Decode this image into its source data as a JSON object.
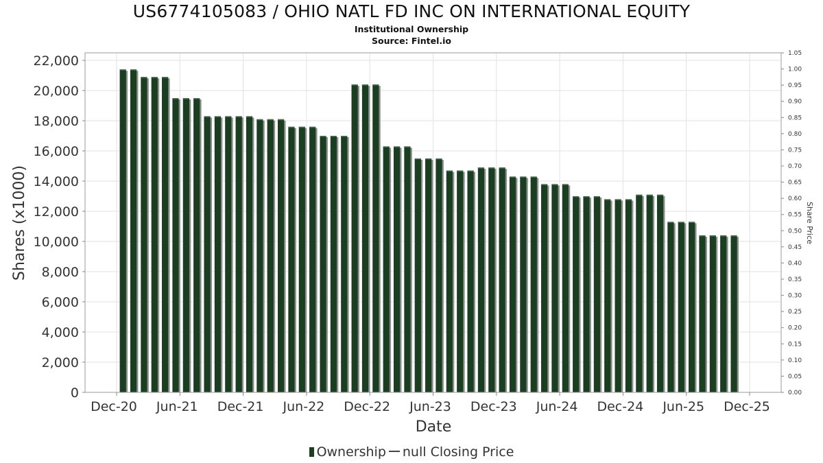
{
  "chart_data": {
    "type": "bar",
    "title": "US6774105083 / OHIO NATL FD INC ON INTERNATIONAL EQUITY",
    "subtitle_1": "Institutional Ownership",
    "subtitle_2": "Source: Fintel.io",
    "xlabel": "Date",
    "ylabel": "Shares (x1000)",
    "y2label": "Share Price",
    "ylim": [
      0,
      22500
    ],
    "y2lim": [
      0,
      1.05
    ],
    "yticks": [
      "0",
      "2,000",
      "4,000",
      "6,000",
      "8,000",
      "10,000",
      "12,000",
      "14,000",
      "16,000",
      "18,000",
      "20,000",
      "22,000"
    ],
    "y2ticks": [
      "0.00",
      "0.05",
      "0.10",
      "0.15",
      "0.20",
      "0.25",
      "0.30",
      "0.35",
      "0.40",
      "0.45",
      "0.50",
      "0.55",
      "0.60",
      "0.65",
      "0.70",
      "0.75",
      "0.80",
      "0.85",
      "0.90",
      "0.95",
      "1.00",
      "1.05"
    ],
    "xticks": [
      "Dec-20",
      "Jun-21",
      "Dec-21",
      "Jun-22",
      "Dec-22",
      "Jun-23",
      "Dec-23",
      "Jun-24",
      "Dec-24",
      "Jun-25",
      "Dec-25"
    ],
    "series": [
      {
        "name": "Ownership",
        "color": "#1b3d22",
        "values": [
          21400,
          21400,
          20900,
          20900,
          20900,
          19500,
          19500,
          19500,
          18300,
          18300,
          18300,
          18300,
          18300,
          18100,
          18100,
          18100,
          17600,
          17600,
          17600,
          17000,
          17000,
          17000,
          20400,
          20400,
          20400,
          16300,
          16300,
          16300,
          15500,
          15500,
          15500,
          14700,
          14700,
          14700,
          14900,
          14900,
          14900,
          14300,
          14300,
          14300,
          13800,
          13800,
          13800,
          13000,
          13000,
          13000,
          12800,
          12800,
          12800,
          13100,
          13100,
          13100,
          11300,
          11300,
          11300,
          10400,
          10400,
          10400,
          10400
        ]
      },
      {
        "name": "null Closing Price",
        "color": "#444444",
        "values": []
      }
    ],
    "legend": {
      "ownership_label": "Ownership",
      "price_label": "null Closing Price",
      "position": "bottom-center"
    }
  }
}
